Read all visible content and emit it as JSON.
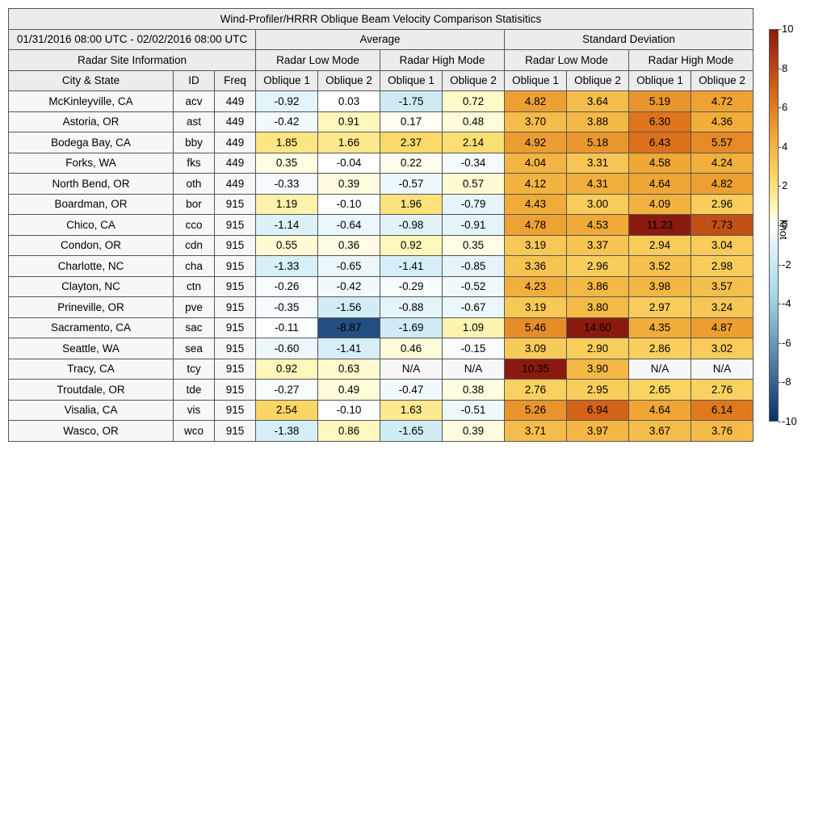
{
  "title": "Wind-Profiler/HRRR Oblique Beam Velocity Comparison Statisitics",
  "date_range": "01/31/2016 08:00 UTC - 02/02/2016 08:00 UTC",
  "group_average": "Average",
  "group_std": "Standard Deviation",
  "site_info": "Radar Site Information",
  "mode_low": "Radar Low Mode",
  "mode_high": "Radar High Mode",
  "col_city": "City & State",
  "col_id": "ID",
  "col_freq": "Freq",
  "col_ob1": "Oblique 1",
  "col_ob2": "Oblique 2",
  "colorbar_unit": "knot",
  "colors": {
    "cold_end": "#08306b",
    "neutral": "#ffffff",
    "warm_end": "#8b1a0e",
    "na_cell": "#f7f7f7"
  },
  "chart_data": {
    "type": "heatmap",
    "title": "Wind-Profiler/HRRR Oblique Beam Velocity Comparison Statisitics",
    "colorbar": {
      "min": -10,
      "max": 10,
      "ticks": [
        10,
        8,
        6,
        4,
        2,
        0,
        -2,
        -4,
        -6,
        -8,
        -10
      ],
      "label": "knot"
    },
    "rows": [
      {
        "city": "McKinleyville, CA",
        "id": "acv",
        "freq": "449",
        "values": [
          "-0.92",
          "0.03",
          "-1.75",
          "0.72",
          "4.82",
          "3.64",
          "5.19",
          "4.72"
        ]
      },
      {
        "city": "Astoria, OR",
        "id": "ast",
        "freq": "449",
        "values": [
          "-0.42",
          "0.91",
          "0.17",
          "0.48",
          "3.70",
          "3.88",
          "6.30",
          "4.36"
        ]
      },
      {
        "city": "Bodega Bay, CA",
        "id": "bby",
        "freq": "449",
        "values": [
          "1.85",
          "1.66",
          "2.37",
          "2.14",
          "4.92",
          "5.18",
          "6.43",
          "5.57"
        ]
      },
      {
        "city": "Forks, WA",
        "id": "fks",
        "freq": "449",
        "values": [
          "0.35",
          "-0.04",
          "0.22",
          "-0.34",
          "4.04",
          "3.31",
          "4.58",
          "4.24"
        ]
      },
      {
        "city": "North Bend, OR",
        "id": "oth",
        "freq": "449",
        "values": [
          "-0.33",
          "0.39",
          "-0.57",
          "0.57",
          "4.12",
          "4.31",
          "4.64",
          "4.82"
        ]
      },
      {
        "city": "Boardman, OR",
        "id": "bor",
        "freq": "915",
        "values": [
          "1.19",
          "-0.10",
          "1.96",
          "-0.79",
          "4.43",
          "3.00",
          "4.09",
          "2.96"
        ]
      },
      {
        "city": "Chico, CA",
        "id": "cco",
        "freq": "915",
        "values": [
          "-1.14",
          "-0.64",
          "-0.98",
          "-0.91",
          "4.78",
          "4.53",
          "11.23",
          "7.73"
        ]
      },
      {
        "city": "Condon, OR",
        "id": "cdn",
        "freq": "915",
        "values": [
          "0.55",
          "0.36",
          "0.92",
          "0.35",
          "3.19",
          "3.37",
          "2.94",
          "3.04"
        ]
      },
      {
        "city": "Charlotte, NC",
        "id": "cha",
        "freq": "915",
        "values": [
          "-1.33",
          "-0.65",
          "-1.41",
          "-0.85",
          "3.36",
          "2.96",
          "3.52",
          "2.98"
        ]
      },
      {
        "city": "Clayton, NC",
        "id": "ctn",
        "freq": "915",
        "values": [
          "-0.26",
          "-0.42",
          "-0.29",
          "-0.52",
          "4.23",
          "3.86",
          "3.98",
          "3.57"
        ]
      },
      {
        "city": "Prineville, OR",
        "id": "pve",
        "freq": "915",
        "values": [
          "-0.35",
          "-1.56",
          "-0.88",
          "-0.67",
          "3.19",
          "3.80",
          "2.97",
          "3.24"
        ]
      },
      {
        "city": "Sacramento, CA",
        "id": "sac",
        "freq": "915",
        "values": [
          "-0.11",
          "-8.87",
          "-1.69",
          "1.09",
          "5.46",
          "14.60",
          "4.35",
          "4.87"
        ]
      },
      {
        "city": "Seattle, WA",
        "id": "sea",
        "freq": "915",
        "values": [
          "-0.60",
          "-1.41",
          "0.46",
          "-0.15",
          "3.09",
          "2.90",
          "2.86",
          "3.02"
        ]
      },
      {
        "city": "Tracy, CA",
        "id": "tcy",
        "freq": "915",
        "values": [
          "0.92",
          "0.63",
          "N/A",
          "N/A",
          "10.35",
          "3.90",
          "N/A",
          "N/A"
        ]
      },
      {
        "city": "Troutdale, OR",
        "id": "tde",
        "freq": "915",
        "values": [
          "-0.27",
          "0.49",
          "-0.47",
          "0.38",
          "2.76",
          "2.95",
          "2.65",
          "2.76"
        ]
      },
      {
        "city": "Visalia, CA",
        "id": "vis",
        "freq": "915",
        "values": [
          "2.54",
          "-0.10",
          "1.63",
          "-0.51",
          "5.26",
          "6.94",
          "4.64",
          "6.14"
        ]
      },
      {
        "city": "Wasco, OR",
        "id": "wco",
        "freq": "915",
        "values": [
          "-1.38",
          "0.86",
          "-1.65",
          "0.39",
          "3.71",
          "3.97",
          "3.67",
          "3.76"
        ]
      }
    ]
  }
}
